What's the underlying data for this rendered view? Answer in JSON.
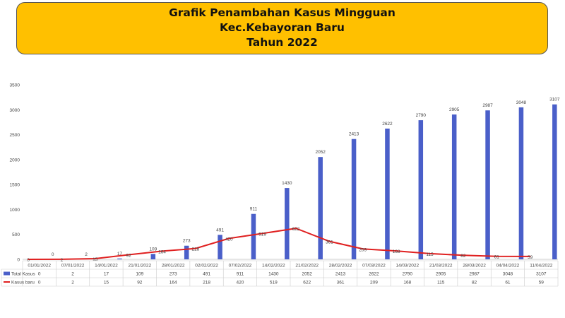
{
  "title_lines": [
    "Grafik Penambahan Kasus Mingguan",
    "Kec.Kebayoran Baru",
    "Tahun 2022"
  ],
  "chart_data": {
    "type": "bar",
    "title": "Grafik Penambahan Kasus Mingguan Kec.Kebayoran Baru Tahun 2022",
    "categories": [
      "01/01/2022",
      "07/01/2022",
      "14/01/2022",
      "21/01/2022",
      "28/01/2022",
      "02/02/2022",
      "07/02/2022",
      "14/02/2022",
      "21/02/2022",
      "28/02/2022",
      "07/03/2022",
      "14/03/2022",
      "21/03/2022",
      "28/03/2022",
      "04/04/2022",
      "11/04/2022"
    ],
    "series": [
      {
        "name": "Total Kasus",
        "type": "bar",
        "color": "#4a5fc9",
        "values": [
          0,
          2,
          17,
          109,
          273,
          491,
          911,
          1430,
          2052,
          2413,
          2622,
          2790,
          2905,
          2987,
          3048,
          3107
        ]
      },
      {
        "name": "Kasus baru",
        "type": "line",
        "color": "#e02020",
        "values": [
          0,
          2,
          15,
          92,
          164,
          218,
          420,
          519,
          622,
          361,
          209,
          168,
          115,
          82,
          61,
          59
        ]
      }
    ],
    "ylim": [
      0,
      3500
    ],
    "yticks": [
      0,
      500,
      1000,
      1500,
      2000,
      2500,
      3000,
      3500
    ],
    "grid": false,
    "legend": "data-table"
  }
}
